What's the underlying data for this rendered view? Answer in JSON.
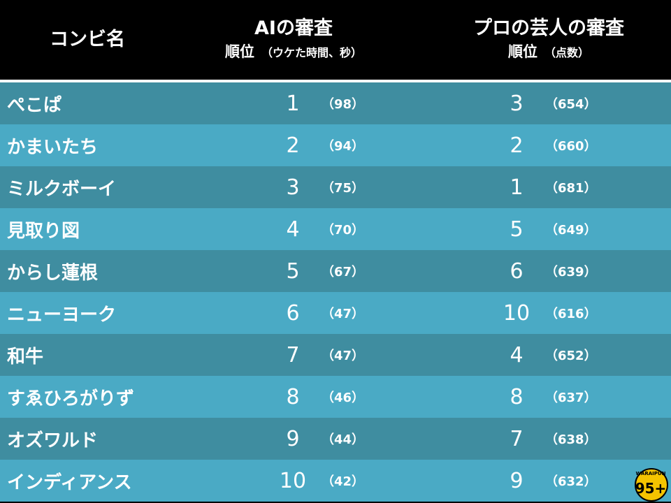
{
  "header": {
    "col_name": "コンビ名",
    "col_ai_title": "AIの審査",
    "col_ai_sub": "順位",
    "col_ai_sub_note": "（ウケた時間、秒）",
    "col_pro_title": "プロの芸人の審査",
    "col_pro_sub": "順位",
    "col_pro_sub_note": "（点数）"
  },
  "rows": [
    {
      "name": "ぺこぱ",
      "ai_rank": "1",
      "ai_score": "（98）",
      "pro_rank": "3",
      "pro_score": "（654）"
    },
    {
      "name": "かまいたち",
      "ai_rank": "2",
      "ai_score": "（94）",
      "pro_rank": "2",
      "pro_score": "（660）"
    },
    {
      "name": "ミルクボーイ",
      "ai_rank": "3",
      "ai_score": "（75）",
      "pro_rank": "1",
      "pro_score": "（681）"
    },
    {
      "name": "見取り図",
      "ai_rank": "4",
      "ai_score": "（70）",
      "pro_rank": "5",
      "pro_score": "（649）"
    },
    {
      "name": "からし蓮根",
      "ai_rank": "5",
      "ai_score": "（67）",
      "pro_rank": "6",
      "pro_score": "（639）"
    },
    {
      "name": "ニューヨーク",
      "ai_rank": "6",
      "ai_score": "（47）",
      "pro_rank": "10",
      "pro_score": "（616）"
    },
    {
      "name": "和牛",
      "ai_rank": "7",
      "ai_score": "（47）",
      "pro_rank": "4",
      "pro_score": "（652）"
    },
    {
      "name": "すゑひろがりず",
      "ai_rank": "8",
      "ai_score": "（46）",
      "pro_rank": "8",
      "pro_score": "（637）"
    },
    {
      "name": "オズワルド",
      "ai_rank": "9",
      "ai_score": "（44）",
      "pro_rank": "7",
      "pro_score": "（638）"
    },
    {
      "name": "インディアンス",
      "ai_rank": "10",
      "ai_score": "（42）",
      "pro_rank": "9",
      "pro_score": "（632）"
    }
  ],
  "logo": {
    "text": "WARAIPUN",
    "mark": "95+",
    "color": "#f5c400"
  },
  "colors": {
    "row_dark": "#3f8da0",
    "row_light": "#4aaac5",
    "header_bg": "#000000"
  }
}
